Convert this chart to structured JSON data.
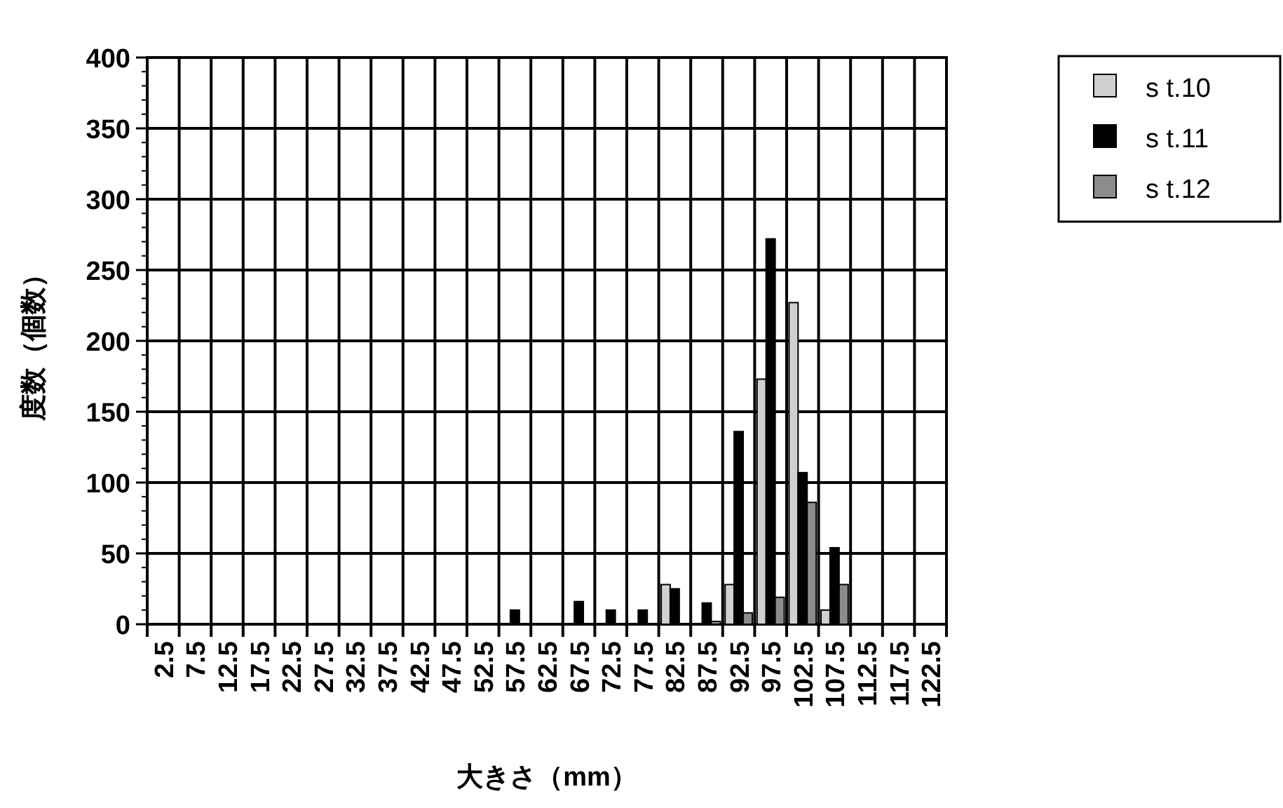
{
  "chart_data": {
    "type": "bar",
    "xlabel": "大きさ（mm）",
    "ylabel": "度数（個数）",
    "categories": [
      "2.5",
      "7.5",
      "12.5",
      "17.5",
      "22.5",
      "27.5",
      "32.5",
      "37.5",
      "42.5",
      "47.5",
      "52.5",
      "57.5",
      "62.5",
      "67.5",
      "72.5",
      "77.5",
      "82.5",
      "87.5",
      "92.5",
      "97.5",
      "102.5",
      "107.5",
      "112.5",
      "117.5",
      "122.5"
    ],
    "series": [
      {
        "name": "s t.10",
        "color": "#d0d0d0",
        "values": [
          0,
          0,
          0,
          0,
          0,
          0,
          0,
          0,
          0,
          0,
          0,
          0,
          0,
          0,
          0,
          0,
          28,
          0,
          28,
          173,
          227,
          10,
          0,
          0,
          0
        ]
      },
      {
        "name": "s t.11",
        "color": "#000000",
        "values": [
          0,
          0,
          0,
          0,
          0,
          0,
          0,
          0,
          0,
          0,
          0,
          10,
          0,
          16,
          10,
          10,
          25,
          15,
          136,
          272,
          107,
          54,
          0,
          0,
          0
        ]
      },
      {
        "name": "s t.12",
        "color": "#8c8c8c",
        "values": [
          0,
          0,
          0,
          0,
          0,
          0,
          0,
          0,
          0,
          0,
          0,
          0,
          0,
          0,
          0,
          0,
          0,
          2,
          8,
          19,
          86,
          28,
          0,
          0,
          0
        ]
      }
    ],
    "ylim": [
      0,
      400
    ],
    "yticks": [
      0,
      50,
      100,
      150,
      200,
      250,
      300,
      350,
      400
    ],
    "grid": true,
    "legend": "top right"
  }
}
